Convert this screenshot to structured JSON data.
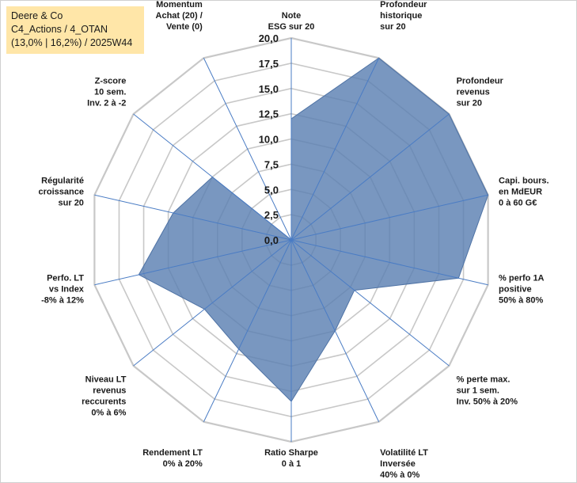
{
  "header": {
    "company": "Deere & Co",
    "portfolio": "C4_Actions / 4_OTAN",
    "stats": "(13,0% | 16,2%) / 2025W44"
  },
  "chart_data": {
    "type": "radar",
    "title": "Deere & Co",
    "rmin": 0,
    "rmax": 20,
    "ticks": [
      "0,0",
      "2,5",
      "5,0",
      "7,5",
      "10,0",
      "12,5",
      "15,0",
      "17,5",
      "20,0"
    ],
    "axes": [
      {
        "label": [
          "Note",
          "ESG sur 20"
        ],
        "value": 12
      },
      {
        "label": [
          "Profondeur",
          "historique",
          "sur 20"
        ],
        "value": 20
      },
      {
        "label": [
          "Profondeur",
          "revenus",
          "sur 20"
        ],
        "value": 20
      },
      {
        "label": [
          "Capi. bours.",
          "en MdEUR",
          "0 à 60 G€"
        ],
        "value": 20
      },
      {
        "label": [
          "% perfo 1A",
          "positive",
          "50% à 80%"
        ],
        "value": 17
      },
      {
        "label": [
          "% perte max.",
          "sur 1 sem.",
          "Inv. 50% à 20%"
        ],
        "value": 8
      },
      {
        "label": [
          "Volatilité LT",
          "Inversée",
          "40% à 0%"
        ],
        "value": 10
      },
      {
        "label": [
          "Ratio Sharpe",
          "0 à 1"
        ],
        "value": 16
      },
      {
        "label": [
          "Rendement LT",
          "0% à 20%"
        ],
        "value": 12
      },
      {
        "label": [
          "Niveau LT",
          "revenus",
          "reccurents",
          "0% à 6%"
        ],
        "value": 11
      },
      {
        "label": [
          "Perfo. LT",
          "vs Index",
          "-8% à 12%"
        ],
        "value": 15.5
      },
      {
        "label": [
          "Régularité",
          "croissance",
          "sur 20"
        ],
        "value": 12
      },
      {
        "label": [
          "Z-score",
          "10 sem.",
          "Inv. 2 à -2"
        ],
        "value": 10
      },
      {
        "label": [
          "Momentum",
          "Achat (20) /",
          "Vente (0)"
        ],
        "value": 0
      }
    ],
    "fill_color": "#5b80b2",
    "fill_opacity": 0.82,
    "grid_color": "#c8c8c8",
    "axis_color": "#4a7cc4"
  }
}
